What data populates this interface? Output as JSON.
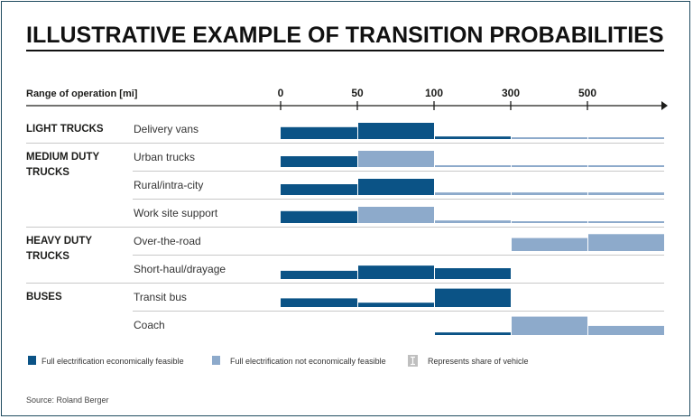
{
  "title": "ILLUSTRATIVE EXAMPLE OF TRANSITION PROBABILITIES",
  "source": "Source: Roland Berger",
  "colors": {
    "feasible": "#0b5386",
    "not_feasible": "#8daacb",
    "text": "#1d1d1b",
    "rule": "#c8c8c8",
    "frame": "#1f4b5f"
  },
  "legend": {
    "feasible": "Full electrification economically feasible",
    "not_feasible": "Full electrification not economically feasible",
    "share": "Represents share of vehicle",
    "share_icon": "bar-height-icon"
  },
  "chart_data": {
    "type": "bar",
    "xlabel": "Range of operation [mi]",
    "bins": [
      "0–50",
      "50–100",
      "100–300",
      "300–500",
      "500+"
    ],
    "tick_labels": [
      "0",
      "50",
      "100",
      "300",
      "500"
    ],
    "value_meaning": "share of vehicle (relative bar height, 0–1)",
    "ylim": [
      0,
      1
    ],
    "groups": [
      {
        "label": "LIGHT TRUCKS",
        "rows": [
          {
            "label": "Delivery vans",
            "values": [
              0.55,
              0.75,
              0.12,
              0.06,
              0.06
            ],
            "status": [
              "feasible",
              "feasible",
              "feasible",
              "not_feasible",
              "not_feasible"
            ]
          }
        ]
      },
      {
        "label": "MEDIUM DUTY TRUCKS",
        "rows": [
          {
            "label": "Urban trucks",
            "values": [
              0.5,
              0.75,
              0.06,
              0.06,
              0.06
            ],
            "status": [
              "feasible",
              "not_feasible",
              "not_feasible",
              "not_feasible",
              "not_feasible"
            ]
          },
          {
            "label": "Rural/intra-city",
            "values": [
              0.5,
              0.75,
              0.12,
              0.12,
              0.12
            ],
            "status": [
              "feasible",
              "feasible",
              "not_feasible",
              "not_feasible",
              "not_feasible"
            ]
          },
          {
            "label": "Work site support",
            "values": [
              0.55,
              0.75,
              0.12,
              0.06,
              0.06
            ],
            "status": [
              "feasible",
              "not_feasible",
              "not_feasible",
              "not_feasible",
              "not_feasible"
            ]
          }
        ]
      },
      {
        "label": "HEAVY DUTY TRUCKS",
        "rows": [
          {
            "label": "Over-the-road",
            "values": [
              0,
              0,
              0,
              0.6,
              0.78
            ],
            "status": [
              "feasible",
              "feasible",
              "feasible",
              "not_feasible",
              "not_feasible"
            ]
          },
          {
            "label": "Short-haul/drayage",
            "values": [
              0.38,
              0.62,
              0.5,
              0,
              0
            ],
            "status": [
              "feasible",
              "feasible",
              "feasible",
              "feasible",
              "feasible"
            ]
          }
        ]
      },
      {
        "label": "BUSES",
        "rows": [
          {
            "label": "Transit bus",
            "values": [
              0.4,
              0.2,
              0.85,
              0,
              0
            ],
            "status": [
              "feasible",
              "feasible",
              "feasible",
              "feasible",
              "feasible"
            ]
          },
          {
            "label": "Coach",
            "values": [
              0,
              0,
              0.12,
              0.85,
              0.42
            ],
            "status": [
              "feasible",
              "feasible",
              "feasible",
              "not_feasible",
              "not_feasible"
            ]
          }
        ]
      }
    ]
  }
}
